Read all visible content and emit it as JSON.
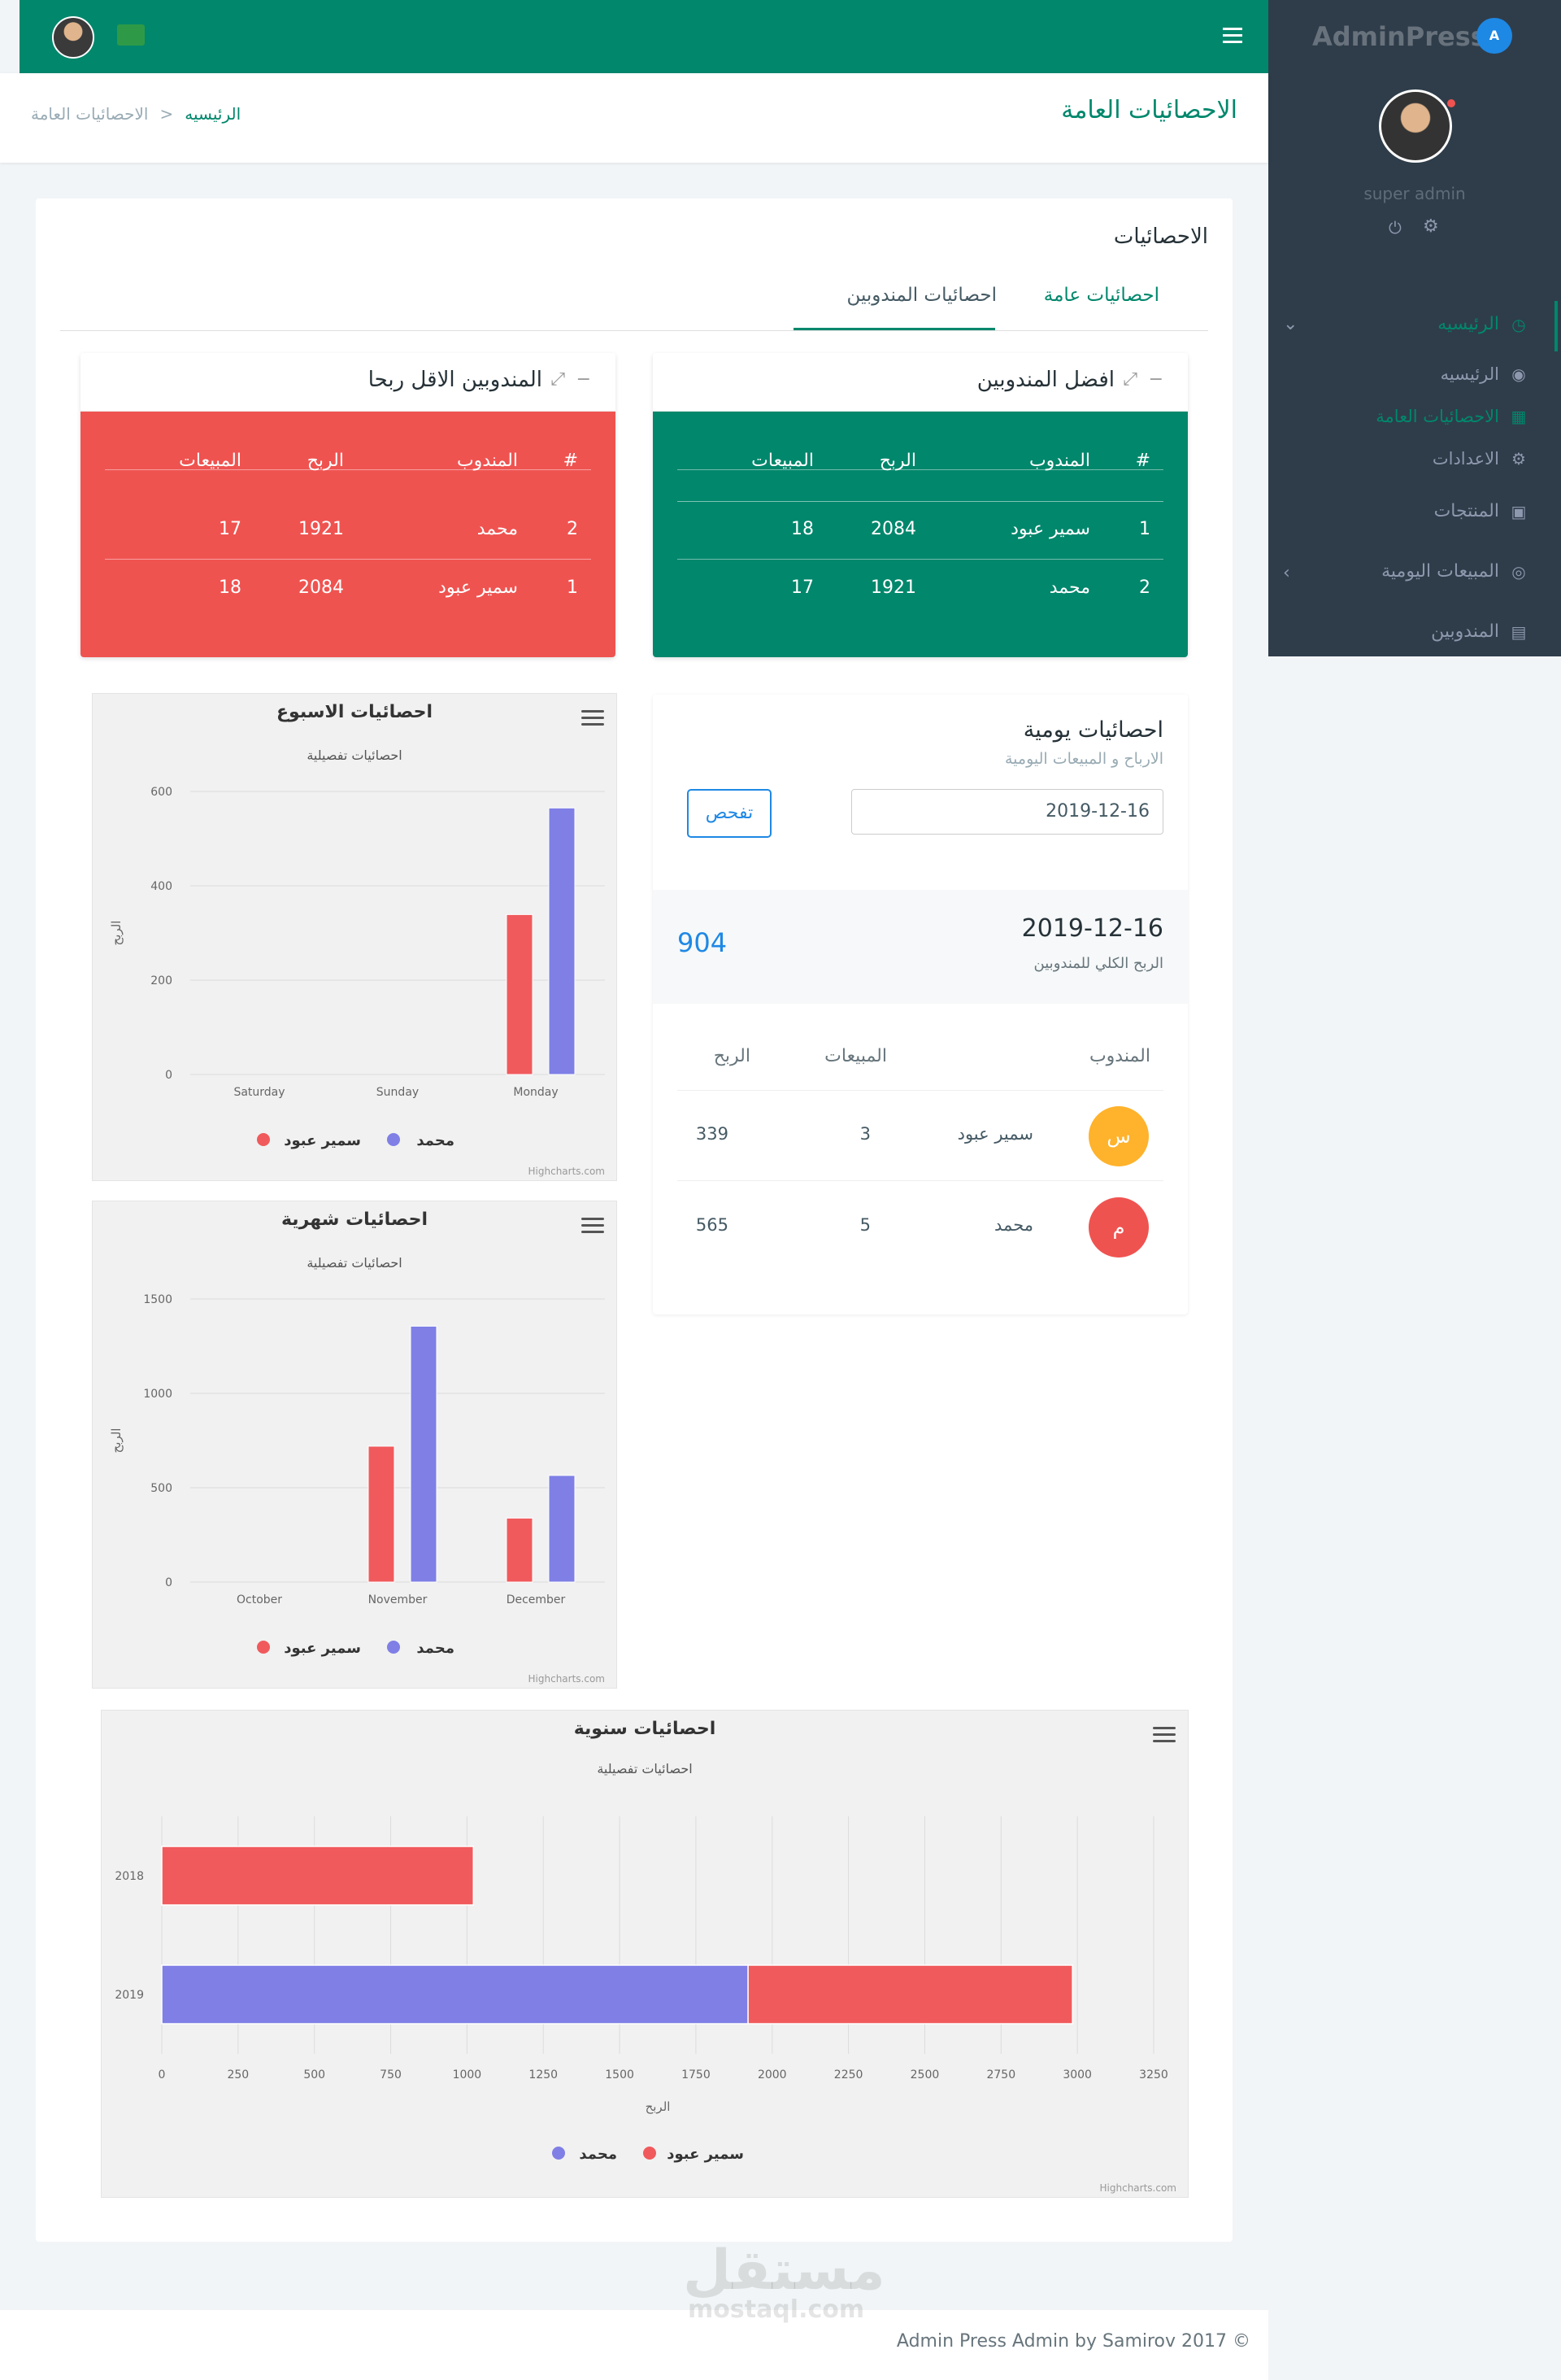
{
  "app": {
    "logo": "AdminPress",
    "user": "super admin"
  },
  "sidebar": {
    "items": [
      {
        "label": "الرئيسيه",
        "icon": "dashboard-icon",
        "active": true
      },
      {
        "label": "الرئيسيه",
        "icon": "user-circle-icon"
      },
      {
        "label": "الاحصائيات العامة",
        "icon": "grid-icon",
        "active": true
      },
      {
        "label": "الاعدادات",
        "icon": "gear-icon"
      },
      {
        "label": "المنتجات",
        "icon": "bag-icon"
      },
      {
        "label": "المبيعات اليومية",
        "icon": "target-icon"
      },
      {
        "label": "المندوبين",
        "icon": "id-card-icon"
      }
    ]
  },
  "header": {
    "title": "الاحصائيات العامة",
    "breadcrumb_home": "الرئيسيه",
    "breadcrumb_current": "الاحصائيات العامة",
    "sep": ">"
  },
  "panel": {
    "title": "الاحصائيات",
    "tabs": [
      "احصائيات عامة",
      "احصائيات المندوبين"
    ]
  },
  "best": {
    "title": "افضل المندوبين",
    "headers": [
      "#",
      "المندوب",
      "الربح",
      "المبيعات"
    ],
    "rows": [
      [
        "1",
        "سمير عبود",
        "2084",
        "18"
      ],
      [
        "2",
        "محمد",
        "1921",
        "17"
      ]
    ],
    "color": "#00876c"
  },
  "least": {
    "title": "المندوبين الاقل ربحا",
    "headers": [
      "#",
      "المندوب",
      "الربح",
      "المبيعات"
    ],
    "rows": [
      [
        "2",
        "محمد",
        "1921",
        "17"
      ],
      [
        "1",
        "سمير عبود",
        "2084",
        "18"
      ]
    ],
    "color": "#ef5350"
  },
  "daily": {
    "title": "احصائيات يومية",
    "subtitle": "الارباح و المبيعات اليومية",
    "date_value": "2019-12-16",
    "check_button": "تفحص",
    "summary_date": "2019-12-16",
    "summary_label": "الربح الكلي للمندوبين",
    "total": "904",
    "headers": [
      "المندوب",
      "المبيعات",
      "الربح"
    ],
    "rows": [
      {
        "initial": "س",
        "name": "سمير عبود",
        "sales": "3",
        "profit": "339",
        "color": "#ffb22b"
      },
      {
        "initial": "م",
        "name": "محمد",
        "sales": "5",
        "profit": "565",
        "color": "#ef5350"
      }
    ]
  },
  "footer": {
    "text": "Admin Press Admin by Samirov 2017 ©",
    "watermark": "مستقل",
    "watermark_url": "mostaql.com"
  },
  "colors": {
    "series_a": "#7f7fe6",
    "series_b": "#f05a5c",
    "brand": "#00876c"
  },
  "charts": [
    {
      "id": "week",
      "title": "احصائيات الاسبوع",
      "subtitle": "احصائيات تفصيلية",
      "credit": "Highcharts.com"
    },
    {
      "id": "month",
      "title": "احصائيات شهرية",
      "subtitle": "احصائيات تفصيلية",
      "credit": "Highcharts.com"
    },
    {
      "id": "year",
      "title": "احصائيات سنوية",
      "subtitle": "احصائيات تفصيلية",
      "credit": "Highcharts.com"
    }
  ],
  "chart_data": [
    {
      "type": "bar",
      "title": "احصائيات الاسبوع",
      "subtitle": "احصائيات تفصيلية",
      "ylabel": "الربح",
      "categories": [
        "Saturday",
        "Sunday",
        "Monday"
      ],
      "ylim": [
        0,
        600
      ],
      "yticks": [
        0,
        200,
        400,
        600
      ],
      "series": [
        {
          "name": "سمير عبود",
          "values": [
            0,
            0,
            339
          ]
        },
        {
          "name": "محمد",
          "values": [
            0,
            0,
            565
          ]
        }
      ]
    },
    {
      "type": "bar",
      "title": "احصائيات شهرية",
      "subtitle": "احصائيات تفصيلية",
      "ylabel": "الربح",
      "categories": [
        "October",
        "November",
        "December"
      ],
      "ylim": [
        0,
        1500
      ],
      "yticks": [
        0,
        500,
        1000,
        1500
      ],
      "series": [
        {
          "name": "سمير عبود",
          "values": [
            0,
            720,
            339
          ]
        },
        {
          "name": "محمد",
          "values": [
            0,
            1356,
            565
          ]
        }
      ]
    },
    {
      "type": "bar",
      "orientation": "horizontal",
      "stacked": true,
      "title": "احصائيات سنوية",
      "subtitle": "احصائيات تفصيلية",
      "xlabel": "الربح",
      "categories": [
        "2018",
        "2019"
      ],
      "xlim": [
        0,
        3250
      ],
      "xticks": [
        0,
        250,
        500,
        750,
        1000,
        1250,
        1500,
        1750,
        2000,
        2250,
        2500,
        2750,
        3000,
        3250
      ],
      "series": [
        {
          "name": "محمد",
          "values": [
            0,
            1921
          ]
        },
        {
          "name": "سمير عبود",
          "values": [
            1021,
            1063
          ]
        }
      ]
    }
  ]
}
